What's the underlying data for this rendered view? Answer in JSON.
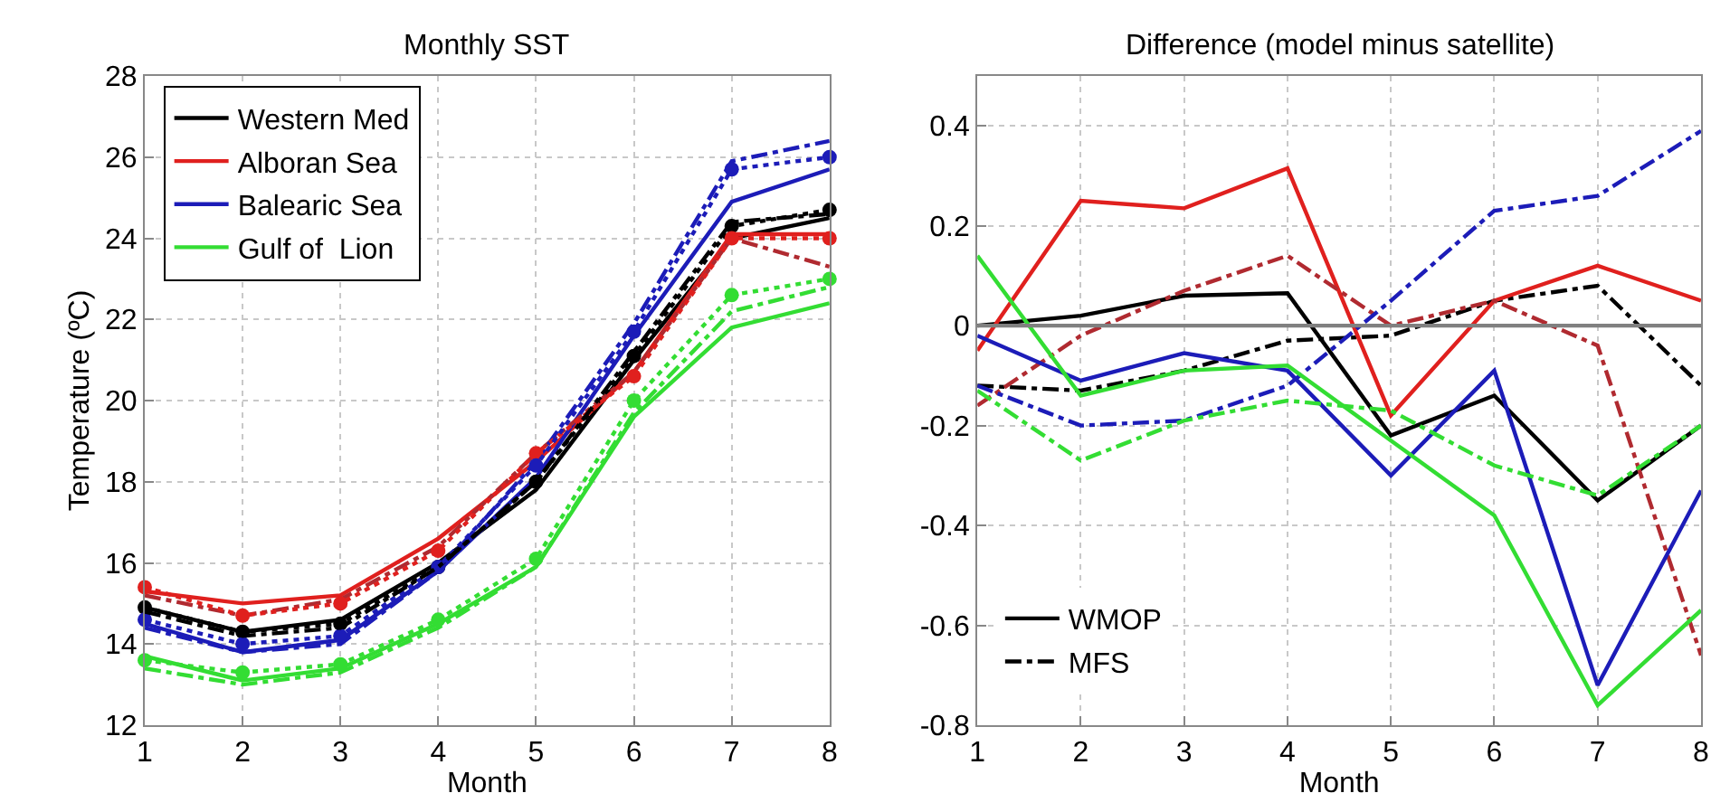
{
  "chart_data": [
    {
      "type": "line",
      "title": "Monthly SST",
      "xlabel": "Month",
      "ylabel": "Temperature (ºC)",
      "x": [
        1,
        2,
        3,
        4,
        5,
        6,
        7,
        8
      ],
      "xlim": [
        1,
        8
      ],
      "xticks": [
        1,
        2,
        3,
        4,
        5,
        6,
        7,
        8
      ],
      "ylim": [
        12,
        28
      ],
      "yticks": [
        12,
        14,
        16,
        18,
        20,
        22,
        24,
        26,
        28
      ],
      "grid": true,
      "legend": "top left",
      "series": [
        {
          "name": "Western Med",
          "color": "#000000",
          "line_style": "solid",
          "values": [
            14.9,
            14.3,
            14.6,
            16.0,
            17.8,
            21.0,
            24.0,
            24.5
          ]
        },
        {
          "name": "Alboran Sea",
          "color": "#e0201e",
          "line_style": "solid",
          "values": [
            15.3,
            15.0,
            15.2,
            16.6,
            18.5,
            20.7,
            24.1,
            24.1
          ]
        },
        {
          "name": "Balearic Sea",
          "color": "#1c1cb8",
          "line_style": "solid",
          "values": [
            14.5,
            13.8,
            14.1,
            15.8,
            18.1,
            21.6,
            24.9,
            25.7
          ]
        },
        {
          "name": "Gulf of  Lion",
          "color": "#33dd33",
          "line_style": "solid",
          "values": [
            13.7,
            13.1,
            13.4,
            14.5,
            15.9,
            19.6,
            21.8,
            22.4
          ]
        },
        {
          "color": "#b02a30",
          "line_style": "dashdot",
          "values": [
            15.2,
            14.7,
            15.1,
            16.4,
            18.7,
            20.7,
            24.0,
            23.3
          ]
        },
        {
          "color": "#1c1cb8",
          "line_style": "dashdot",
          "values": [
            14.4,
            13.8,
            14.0,
            15.8,
            18.5,
            21.9,
            25.9,
            26.4
          ]
        },
        {
          "color": "#33dd33",
          "line_style": "dashdot",
          "values": [
            13.4,
            13.0,
            13.3,
            14.4,
            15.9,
            19.7,
            22.2,
            22.8
          ]
        },
        {
          "color": "#000000",
          "line_style": "dotted",
          "marker": "circle",
          "values": [
            14.9,
            14.3,
            14.5,
            15.9,
            18.0,
            21.1,
            24.3,
            24.7
          ]
        },
        {
          "color": "#e0201e",
          "line_style": "dotted",
          "marker": "circle",
          "values": [
            15.4,
            14.7,
            15.0,
            16.3,
            18.7,
            20.6,
            24.0,
            24.0
          ]
        },
        {
          "color": "#1c1cb8",
          "line_style": "dotted",
          "marker": "circle",
          "values": [
            14.6,
            14.0,
            14.2,
            15.9,
            18.4,
            21.7,
            25.7,
            26.0
          ]
        },
        {
          "color": "#33dd33",
          "line_style": "dotted",
          "marker": "circle",
          "values": [
            13.6,
            13.3,
            13.5,
            14.6,
            16.1,
            20.0,
            22.6,
            23.0
          ]
        },
        {
          "color": "#000000",
          "line_style": "dashdot",
          "values": [
            14.8,
            14.2,
            14.4,
            15.9,
            18.0,
            21.2,
            24.4,
            24.6
          ]
        }
      ]
    },
    {
      "type": "line",
      "title": "Difference (model minus satellite)",
      "xlabel": "Month",
      "x": [
        1,
        2,
        3,
        4,
        5,
        6,
        7,
        8
      ],
      "xlim": [
        1,
        8
      ],
      "xticks": [
        1,
        2,
        3,
        4,
        5,
        6,
        7,
        8
      ],
      "ylim": [
        -0.8,
        0.5
      ],
      "yticks": [
        -0.8,
        -0.6,
        -0.4,
        -0.2,
        0,
        0.2,
        0.4
      ],
      "grid": true,
      "legend": "bottom left",
      "ref_lines": [
        {
          "axis": "y",
          "value": 0,
          "color": "#808080"
        }
      ],
      "series": [
        {
          "name": "WMOP",
          "color": "#000000",
          "line_style": "solid",
          "values": [
            0.0,
            0.02,
            0.06,
            0.065,
            -0.22,
            -0.14,
            -0.35,
            -0.2
          ]
        },
        {
          "name": "MFS",
          "color": "#000000",
          "line_style": "dashdot",
          "values": [
            -0.12,
            -0.13,
            -0.09,
            -0.03,
            -0.02,
            0.05,
            0.08,
            -0.12
          ]
        },
        {
          "color": "#e0201e",
          "line_style": "solid",
          "values": [
            -0.05,
            0.25,
            0.235,
            0.315,
            -0.18,
            0.05,
            0.12,
            0.05
          ]
        },
        {
          "color": "#b02a30",
          "line_style": "dashdot",
          "values": [
            -0.16,
            -0.02,
            0.07,
            0.14,
            0.0,
            0.05,
            -0.04,
            -0.66
          ]
        },
        {
          "color": "#1c1cb8",
          "line_style": "solid",
          "values": [
            -0.02,
            -0.11,
            -0.055,
            -0.09,
            -0.3,
            -0.09,
            -0.72,
            -0.33
          ]
        },
        {
          "color": "#1c1cb8",
          "line_style": "dashdot",
          "values": [
            -0.12,
            -0.2,
            -0.19,
            -0.12,
            0.05,
            0.23,
            0.26,
            0.39
          ]
        },
        {
          "color": "#33dd33",
          "line_style": "solid",
          "values": [
            0.14,
            -0.14,
            -0.09,
            -0.08,
            -0.23,
            -0.38,
            -0.76,
            -0.57
          ]
        },
        {
          "color": "#33dd33",
          "line_style": "dashdot",
          "values": [
            -0.13,
            -0.27,
            -0.19,
            -0.15,
            -0.17,
            -0.28,
            -0.34,
            -0.2
          ]
        }
      ]
    }
  ]
}
